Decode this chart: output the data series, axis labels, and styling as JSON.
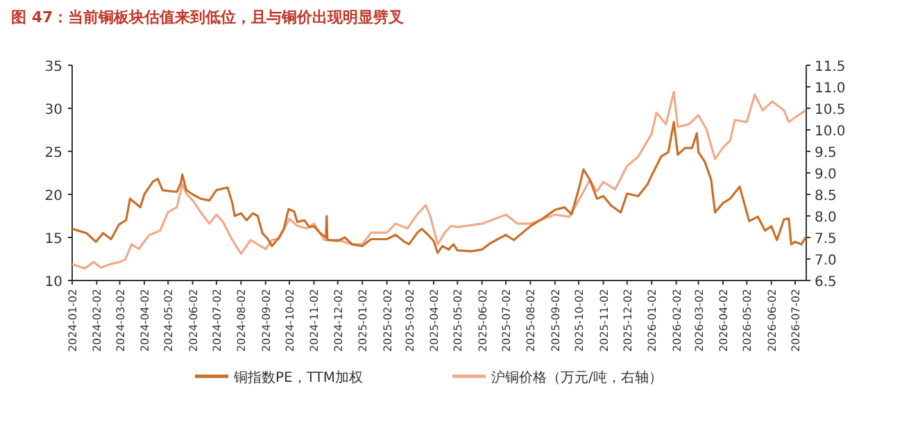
{
  "chart_data": {
    "type": "line",
    "title": "图 47：当前铜板块估值来到低位，且与铜价出现明显劈叉",
    "legend": "bottom",
    "xlim": [
      "2024-01-02",
      "2026-07-16"
    ],
    "xticks": [
      "2024-01-02",
      "2024-02-02",
      "2024-03-02",
      "2024-04-02",
      "2024-05-02",
      "2024-06-02",
      "2024-07-02",
      "2024-08-02",
      "2024-09-02",
      "2024-10-02",
      "2024-11-02",
      "2024-12-02",
      "2025-01-02",
      "2025-02-02",
      "2025-03-02",
      "2025-04-02",
      "2025-05-02",
      "2025-06-02",
      "2025-07-02",
      "2025-08-02",
      "2025-09-02",
      "2025-10-02",
      "2025-11-02",
      "2025-12-02",
      "2026-01-02",
      "2026-02-02",
      "2026-03-02",
      "2026-04-02",
      "2026-05-02",
      "2026-06-02",
      "2026-07-02"
    ],
    "ylim": [
      10,
      35
    ],
    "yticks": [
      10,
      15,
      20,
      25,
      30,
      35
    ],
    "y2lim": [
      6.5,
      11.5
    ],
    "y2ticks": [
      6.5,
      {
        "value": 7,
        "label": "7.0"
      },
      7.5,
      {
        "value": 8,
        "label": "8.0"
      },
      8.5,
      {
        "value": 9,
        "label": "9.0"
      },
      9.5,
      {
        "value": 10,
        "label": "10.0"
      },
      10.5,
      {
        "value": 11,
        "label": "11.0"
      },
      11.5
    ],
    "series": [
      {
        "name": "铜指数PE，TTM加权",
        "color": "#c8702a",
        "x": [
          "2024-01-02",
          "2024-01-20",
          "2024-02-01",
          "2024-02-10",
          "2024-02-20",
          "2024-03-01",
          "2024-03-10",
          "2024-03-15",
          "2024-03-28",
          "2024-04-02",
          "2024-04-13",
          "2024-04-19",
          "2024-04-25",
          "2024-05-02",
          "2024-05-13",
          "2024-05-18",
          "2024-05-20",
          "2024-05-25",
          "2024-06-02",
          "2024-06-12",
          "2024-06-23",
          "2024-07-02",
          "2024-07-16",
          "2024-07-22",
          "2024-07-25",
          "2024-08-02",
          "2024-08-09",
          "2024-08-17",
          "2024-08-23",
          "2024-08-29",
          "2024-09-05",
          "2024-09-10",
          "2024-09-19",
          "2024-09-25",
          "2024-10-01",
          "2024-10-08",
          "2024-10-12",
          "2024-10-21",
          "2024-10-27",
          "2024-11-02",
          "2024-11-10",
          "2024-11-17",
          "2024-11-18",
          "2024-11-19",
          "2024-12-02",
          "2024-12-11",
          "2024-12-20",
          "2025-01-02",
          "2025-01-13",
          "2025-02-02",
          "2025-02-13",
          "2025-02-24",
          "2025-03-02",
          "2025-03-12",
          "2025-03-18",
          "2025-03-26",
          "2025-04-02",
          "2025-04-07",
          "2025-04-13",
          "2025-04-21",
          "2025-04-27",
          "2025-05-02",
          "2025-05-20",
          "2025-06-02",
          "2025-06-12",
          "2025-07-02",
          "2025-07-12",
          "2025-08-02",
          "2025-08-16",
          "2025-09-02",
          "2025-09-14",
          "2025-09-23",
          "2025-10-02",
          "2025-10-08",
          "2025-10-16",
          "2025-10-25",
          "2025-11-02",
          "2025-11-12",
          "2025-11-24",
          "2025-12-02",
          "2025-12-16",
          "2025-12-28",
          "2026-01-02",
          "2026-01-14",
          "2026-01-23",
          "2026-01-30",
          "2026-02-04",
          "2026-02-13",
          "2026-02-22",
          "2026-02-28",
          "2026-03-02",
          "2026-03-10",
          "2026-03-18",
          "2026-03-23",
          "2026-04-02",
          "2026-04-11",
          "2026-04-23",
          "2026-05-05",
          "2026-05-16",
          "2026-05-25",
          "2026-06-02",
          "2026-06-09",
          "2026-06-18",
          "2026-06-24",
          "2026-06-27",
          "2026-07-02",
          "2026-07-10",
          "2026-07-15"
        ],
        "values": [
          16.0,
          15.5,
          14.5,
          15.5,
          14.8,
          16.5,
          17.0,
          19.5,
          18.5,
          20.0,
          21.5,
          21.8,
          20.5,
          20.4,
          20.3,
          21.3,
          22.3,
          20.5,
          20.0,
          19.5,
          19.3,
          20.5,
          20.8,
          19.0,
          17.5,
          17.8,
          17.0,
          17.8,
          17.5,
          15.5,
          14.8,
          14.0,
          15.0,
          16.0,
          18.3,
          18.0,
          16.8,
          17.0,
          16.2,
          16.3,
          15.5,
          15.0,
          17.5,
          14.7,
          14.6,
          15.0,
          14.2,
          14.0,
          14.8,
          14.8,
          15.3,
          14.5,
          14.2,
          15.5,
          16.0,
          15.3,
          14.6,
          13.2,
          14.0,
          13.6,
          14.2,
          13.5,
          13.4,
          13.6,
          14.3,
          15.3,
          14.7,
          16.3,
          17.1,
          18.2,
          18.5,
          17.7,
          20.6,
          22.9,
          21.7,
          19.5,
          19.8,
          18.7,
          17.9,
          20.1,
          19.8,
          21.2,
          22.2,
          24.4,
          24.9,
          28.4,
          24.6,
          25.4,
          25.4,
          27.1,
          24.9,
          23.8,
          21.7,
          17.9,
          19.0,
          19.5,
          20.9,
          16.9,
          17.4,
          15.8,
          16.3,
          14.7,
          17.1,
          17.2,
          14.2,
          14.5,
          14.2,
          15.0
        ]
      },
      {
        "name": "沪铜价格（万元/吨，右轴）",
        "color": "#f0aa8a",
        "axis": "y2",
        "x": [
          "2024-01-02",
          "2024-01-18",
          "2024-01-29",
          "2024-02-07",
          "2024-02-21",
          "2024-03-02",
          "2024-03-09",
          "2024-03-17",
          "2024-03-26",
          "2024-04-08",
          "2024-04-22",
          "2024-05-02",
          "2024-05-13",
          "2024-05-20",
          "2024-05-25",
          "2024-06-02",
          "2024-06-12",
          "2024-06-23",
          "2024-07-02",
          "2024-07-10",
          "2024-07-22",
          "2024-08-02",
          "2024-08-14",
          "2024-08-23",
          "2024-09-02",
          "2024-09-10",
          "2024-09-19",
          "2024-10-02",
          "2024-10-12",
          "2024-10-24",
          "2024-11-02",
          "2024-11-15",
          "2024-12-02",
          "2024-12-20",
          "2025-01-02",
          "2025-01-13",
          "2025-02-02",
          "2025-02-13",
          "2025-02-28",
          "2025-03-12",
          "2025-03-23",
          "2025-03-29",
          "2025-04-07",
          "2025-04-16",
          "2025-04-24",
          "2025-05-02",
          "2025-06-02",
          "2025-07-02",
          "2025-07-17",
          "2025-08-02",
          "2025-09-02",
          "2025-09-20",
          "2025-10-02",
          "2025-10-16",
          "2025-10-25",
          "2025-11-02",
          "2025-11-17",
          "2025-12-02",
          "2025-12-16",
          "2026-01-02",
          "2026-01-08",
          "2026-01-20",
          "2026-01-30",
          "2026-02-04",
          "2026-02-18",
          "2026-03-02",
          "2026-03-12",
          "2026-03-23",
          "2026-04-02",
          "2026-04-11",
          "2026-04-17",
          "2026-05-02",
          "2026-05-12",
          "2026-05-22",
          "2026-06-03",
          "2026-06-18",
          "2026-06-24",
          "2026-07-02",
          "2026-07-15"
        ],
        "values": [
          6.88,
          6.78,
          6.93,
          6.8,
          6.89,
          6.93,
          6.99,
          7.34,
          7.23,
          7.55,
          7.66,
          8.09,
          8.2,
          8.73,
          8.52,
          8.36,
          8.09,
          7.82,
          8.03,
          7.87,
          7.44,
          7.12,
          7.44,
          7.34,
          7.23,
          7.44,
          7.47,
          7.93,
          7.77,
          7.71,
          7.82,
          7.44,
          7.44,
          7.34,
          7.34,
          7.61,
          7.61,
          7.82,
          7.71,
          8.03,
          8.25,
          7.98,
          7.34,
          7.61,
          7.77,
          7.74,
          7.82,
          8.03,
          7.82,
          7.82,
          8.03,
          7.98,
          8.36,
          8.84,
          8.57,
          8.79,
          8.62,
          9.16,
          9.38,
          9.91,
          10.4,
          10.13,
          10.88,
          10.07,
          10.13,
          10.34,
          10.02,
          9.32,
          9.59,
          9.75,
          10.23,
          10.18,
          10.82,
          10.45,
          10.66,
          10.45,
          10.18,
          10.29,
          10.45
        ]
      }
    ]
  }
}
